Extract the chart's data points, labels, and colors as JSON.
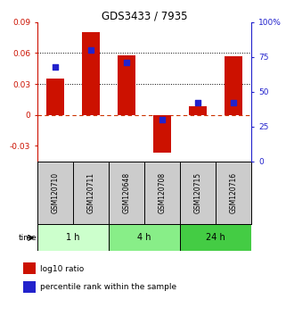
{
  "title": "GDS3433 / 7935",
  "samples": [
    "GSM120710",
    "GSM120711",
    "GSM120648",
    "GSM120708",
    "GSM120715",
    "GSM120716"
  ],
  "log10_ratio": [
    0.035,
    0.08,
    0.058,
    -0.037,
    0.008,
    0.057
  ],
  "percentile_rank": [
    68,
    80,
    71,
    30,
    42,
    42
  ],
  "bar_color": "#cc1100",
  "dot_color": "#2222cc",
  "ylim_left": [
    -0.045,
    0.09
  ],
  "yticks_left": [
    -0.03,
    0.0,
    0.03,
    0.06,
    0.09
  ],
  "ytick_labels_left": [
    "-0.03",
    "0",
    "0.03",
    "0.06",
    "0.09"
  ],
  "ytick_labels_right": [
    "0",
    "25",
    "50",
    "75",
    "100%"
  ],
  "hlines": [
    0.03,
    0.06
  ],
  "hline_zero_color": "#cc3300",
  "hline_color": "black",
  "groups": [
    {
      "label": "1 h",
      "samples": [
        0,
        1
      ],
      "color": "#ccffcc"
    },
    {
      "label": "4 h",
      "samples": [
        2,
        3
      ],
      "color": "#88ee88"
    },
    {
      "label": "24 h",
      "samples": [
        4,
        5
      ],
      "color": "#44cc44"
    }
  ],
  "sample_box_color": "#cccccc",
  "bar_width": 0.5,
  "dot_size": 18,
  "legend_items": [
    {
      "label": "log10 ratio",
      "color": "#cc1100"
    },
    {
      "label": "percentile rank within the sample",
      "color": "#2222cc"
    }
  ]
}
